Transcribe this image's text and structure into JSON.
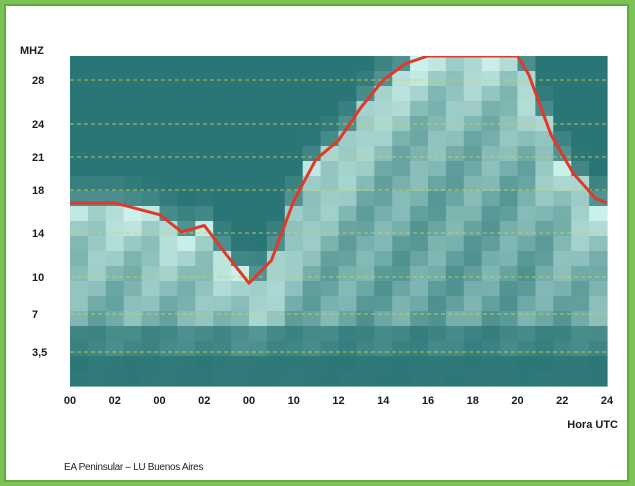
{
  "chart_data": {
    "type": "heatmap",
    "title": "",
    "ylabel": "MHZ",
    "xlabel": "Hora UTC",
    "caption": "EA Peninsular – LU Buenos Aires",
    "x_tick_labels": [
      "00",
      "02",
      "00",
      "02",
      "00",
      "10",
      "12",
      "14",
      "16",
      "18",
      "20",
      "22",
      "24"
    ],
    "y_tick_labels": [
      "3,5",
      "7",
      "10",
      "14",
      "18",
      "21",
      "24",
      "28"
    ],
    "x_range": [
      0,
      24
    ],
    "grid": true,
    "colors": {
      "line": "#e0392b",
      "grid": "#c9d64a",
      "dark": "#2a7575",
      "light": "#cdf1ea"
    },
    "muf_curve": [
      {
        "hour": 0,
        "mhz": 16.8
      },
      {
        "hour": 2,
        "mhz": 16.8
      },
      {
        "hour": 4,
        "mhz": 15.7
      },
      {
        "hour": 5,
        "mhz": 14.1
      },
      {
        "hour": 6,
        "mhz": 14.7
      },
      {
        "hour": 7,
        "mhz": 12.0
      },
      {
        "hour": 8,
        "mhz": 9.5
      },
      {
        "hour": 9,
        "mhz": 11.5
      },
      {
        "hour": 10,
        "mhz": 17.0
      },
      {
        "hour": 11,
        "mhz": 20.8
      },
      {
        "hour": 12,
        "mhz": 22.5
      },
      {
        "hour": 13,
        "mhz": 25.5
      },
      {
        "hour": 14,
        "mhz": 28.0
      },
      {
        "hour": 15,
        "mhz": 29.5
      },
      {
        "hour": 16,
        "mhz": 30.8
      },
      {
        "hour": 20,
        "mhz": 31.0
      },
      {
        "hour": 20.5,
        "mhz": 28.5
      },
      {
        "hour": 21.5,
        "mhz": 23.0
      },
      {
        "hour": 22.5,
        "mhz": 19.5
      },
      {
        "hour": 23.5,
        "mhz": 17.2
      },
      {
        "hour": 24,
        "mhz": 16.8
      }
    ]
  }
}
